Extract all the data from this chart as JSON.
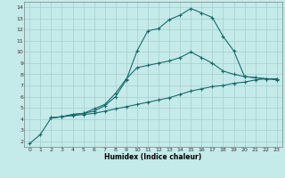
{
  "xlabel": "Humidex (Indice chaleur)",
  "background_color": "#c5eaea",
  "grid_color": "#a8d4d4",
  "line_color": "#1a6b6b",
  "xlim": [
    -0.5,
    23.5
  ],
  "ylim": [
    1.5,
    14.5
  ],
  "xticks": [
    0,
    1,
    2,
    3,
    4,
    5,
    6,
    7,
    8,
    9,
    10,
    11,
    12,
    13,
    14,
    15,
    16,
    17,
    18,
    19,
    20,
    21,
    22,
    23
  ],
  "yticks": [
    2,
    3,
    4,
    5,
    6,
    7,
    8,
    9,
    10,
    11,
    12,
    13,
    14
  ],
  "curve1_x": [
    0,
    1,
    2,
    3,
    4,
    5,
    6,
    7,
    8,
    9,
    10,
    11,
    12,
    13,
    14,
    15,
    16,
    17,
    18,
    19,
    20,
    21,
    22,
    23
  ],
  "curve1_y": [
    1.8,
    2.6,
    4.1,
    4.2,
    4.4,
    4.5,
    4.7,
    5.2,
    6.0,
    7.5,
    10.1,
    11.9,
    12.1,
    12.9,
    13.3,
    13.9,
    13.5,
    13.1,
    11.4,
    10.1,
    7.8,
    7.7,
    7.6,
    7.6
  ],
  "curve2_x": [
    2,
    3,
    4,
    5,
    6,
    7,
    8,
    9,
    10,
    11,
    12,
    13,
    14,
    15,
    16,
    17,
    18,
    19,
    20,
    21,
    22,
    23
  ],
  "curve2_y": [
    4.1,
    4.2,
    4.4,
    4.5,
    4.9,
    5.3,
    6.3,
    7.6,
    8.6,
    8.8,
    9.0,
    9.2,
    9.5,
    10.0,
    9.5,
    9.0,
    8.3,
    8.0,
    7.8,
    7.7,
    7.6,
    7.5
  ],
  "curve3_x": [
    2,
    3,
    4,
    5,
    6,
    7,
    8,
    9,
    10,
    11,
    12,
    13,
    14,
    15,
    16,
    17,
    18,
    19,
    20,
    21,
    22,
    23
  ],
  "curve3_y": [
    4.1,
    4.2,
    4.3,
    4.4,
    4.5,
    4.7,
    4.9,
    5.1,
    5.3,
    5.5,
    5.7,
    5.9,
    6.2,
    6.5,
    6.7,
    6.9,
    7.0,
    7.2,
    7.3,
    7.5,
    7.6,
    7.6
  ]
}
